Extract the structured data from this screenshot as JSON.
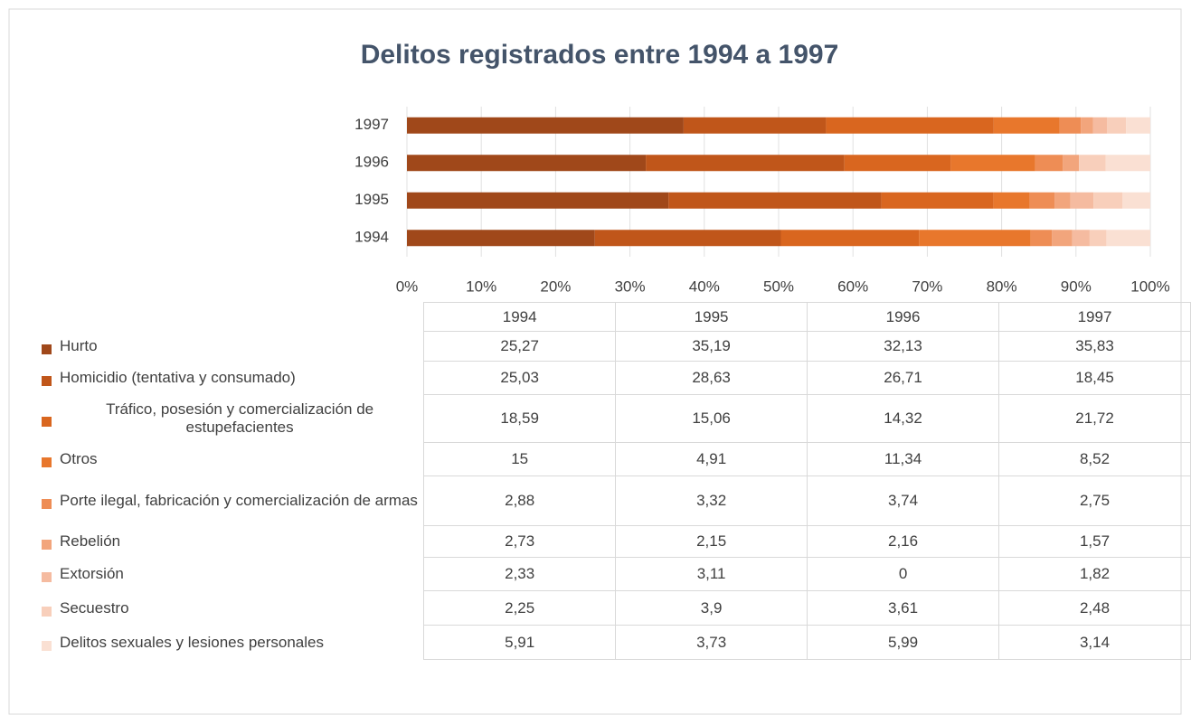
{
  "chart_data": {
    "type": "bar",
    "orientation": "horizontal",
    "stacking": "percent",
    "title": "Delitos registrados entre 1994 a 1997",
    "categories": [
      "1994",
      "1995",
      "1996",
      "1997"
    ],
    "xlim": [
      0,
      100
    ],
    "xticks": [
      {
        "value": 0,
        "label": "0%"
      },
      {
        "value": 10,
        "label": "10%"
      },
      {
        "value": 20,
        "label": "20%"
      },
      {
        "value": 30,
        "label": "30%"
      },
      {
        "value": 40,
        "label": "40%"
      },
      {
        "value": 50,
        "label": "50%"
      },
      {
        "value": 60,
        "label": "60%"
      },
      {
        "value": 70,
        "label": "70%"
      },
      {
        "value": 80,
        "label": "80%"
      },
      {
        "value": 90,
        "label": "90%"
      },
      {
        "value": 100,
        "label": "100%"
      }
    ],
    "grid": true,
    "series": [
      {
        "name": "Hurto",
        "color": "#a0481a",
        "values": [
          25.27,
          35.19,
          32.13,
          35.83
        ],
        "value_labels": [
          "25,27",
          "35,19",
          "32,13",
          "35,83"
        ]
      },
      {
        "name": "Homicidio (tentativa y consumado)",
        "color": "#c0561a",
        "values": [
          25.03,
          28.63,
          26.71,
          18.45
        ],
        "value_labels": [
          "25,03",
          "28,63",
          "26,71",
          "18,45"
        ]
      },
      {
        "name": "Tráfico, posesión y comercialización de estupefacientes",
        "color": "#d9661f",
        "values": [
          18.59,
          15.06,
          14.32,
          21.72
        ],
        "value_labels": [
          "18,59",
          "15,06",
          "14,32",
          "21,72"
        ]
      },
      {
        "name": "Otros",
        "color": "#e8772c",
        "values": [
          15,
          4.91,
          11.34,
          8.52
        ],
        "value_labels": [
          "15",
          "4,91",
          "11,34",
          "8,52"
        ]
      },
      {
        "name": "Porte ilegal, fabricación y comercialización de armas",
        "color": "#ee8d55",
        "values": [
          2.88,
          3.32,
          3.74,
          2.75
        ],
        "value_labels": [
          "2,88",
          "3,32",
          "3,74",
          "2,75"
        ]
      },
      {
        "name": "Rebelión",
        "color": "#f2a57c",
        "values": [
          2.73,
          2.15,
          2.16,
          1.57
        ],
        "value_labels": [
          "2,73",
          "2,15",
          "2,16",
          "1,57"
        ]
      },
      {
        "name": "Extorsión",
        "color": "#f5bba0",
        "values": [
          2.33,
          3.11,
          0,
          1.82
        ],
        "value_labels": [
          "2,33",
          "3,11",
          "0",
          "1,82"
        ]
      },
      {
        "name": "Secuestro",
        "color": "#f8cfbb",
        "values": [
          2.25,
          3.9,
          3.61,
          2.48
        ],
        "value_labels": [
          "2,25",
          "3,9",
          "3,61",
          "2,48"
        ]
      },
      {
        "name": "Delitos sexuales y lesiones personales",
        "color": "#fae0d3",
        "values": [
          5.91,
          3.73,
          5.99,
          3.14
        ],
        "value_labels": [
          "5,91",
          "3,73",
          "5,99",
          "3,14"
        ]
      }
    ]
  }
}
